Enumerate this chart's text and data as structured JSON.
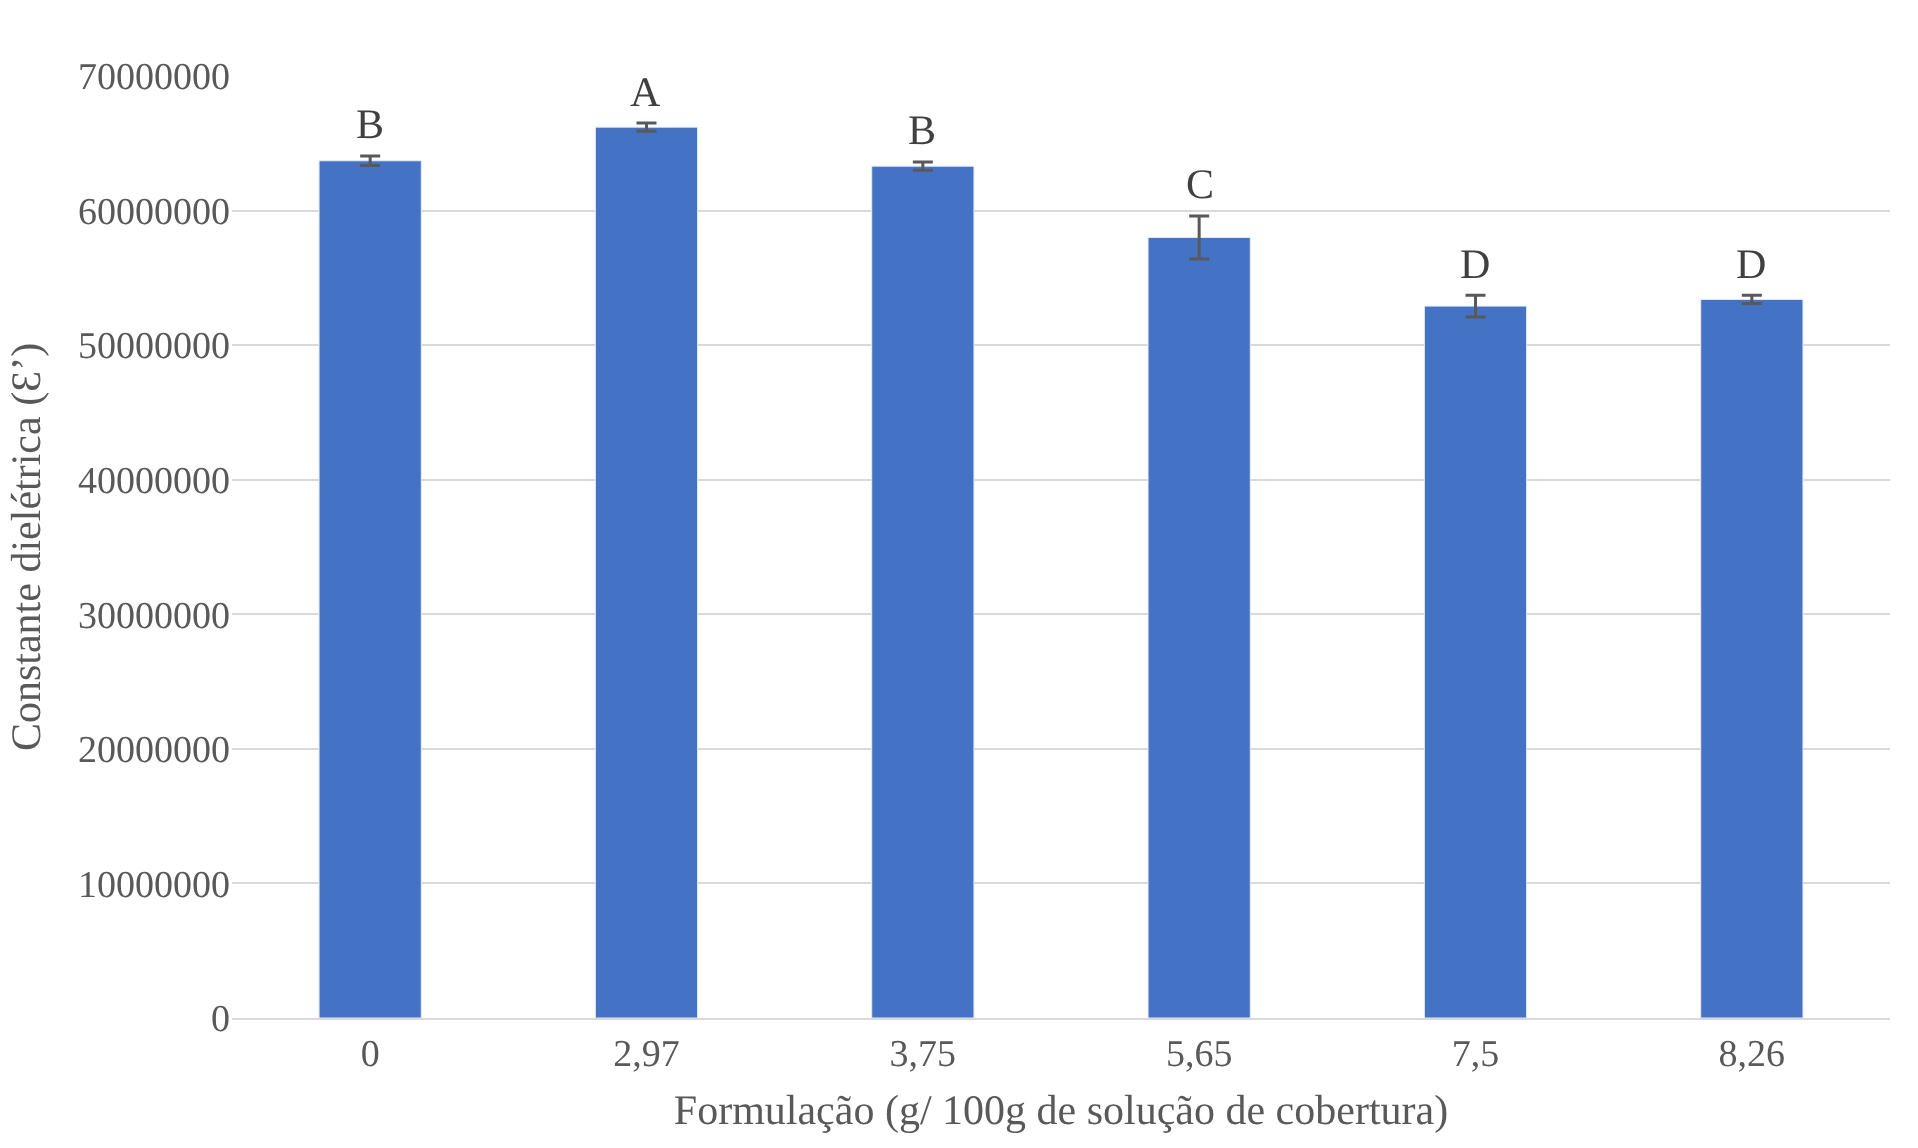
{
  "chart_data": {
    "type": "bar",
    "xlabel": "Formulação (g/ 100g de solução de cobertura)",
    "ylabel": "Constante dielétrica (Ɛ’)",
    "categories": [
      "0",
      "2,97",
      "3,75",
      "5,65",
      "7,5",
      "8,26"
    ],
    "values": [
      63700000,
      66200000,
      63300000,
      58000000,
      52900000,
      53400000
    ],
    "errors": [
      350000,
      300000,
      300000,
      1600000,
      800000,
      300000
    ],
    "color": "#4472c4",
    "ylim": [
      0,
      70000000
    ],
    "yticks": [
      0,
      10000000,
      20000000,
      30000000,
      40000000,
      50000000,
      60000000,
      70000000
    ],
    "grid": "y",
    "annotations": [
      {
        "text": "B",
        "x": "0",
        "y": 64050000
      },
      {
        "text": "A",
        "x": "2,97",
        "y": 66500000
      },
      {
        "text": "B",
        "x": "3,75",
        "y": 63600000
      },
      {
        "text": "C",
        "x": "5,65",
        "y": 59600000
      },
      {
        "text": "D",
        "x": "7,5",
        "y": 53700000
      },
      {
        "text": "D",
        "x": "8,26",
        "y": 53700000
      }
    ]
  }
}
